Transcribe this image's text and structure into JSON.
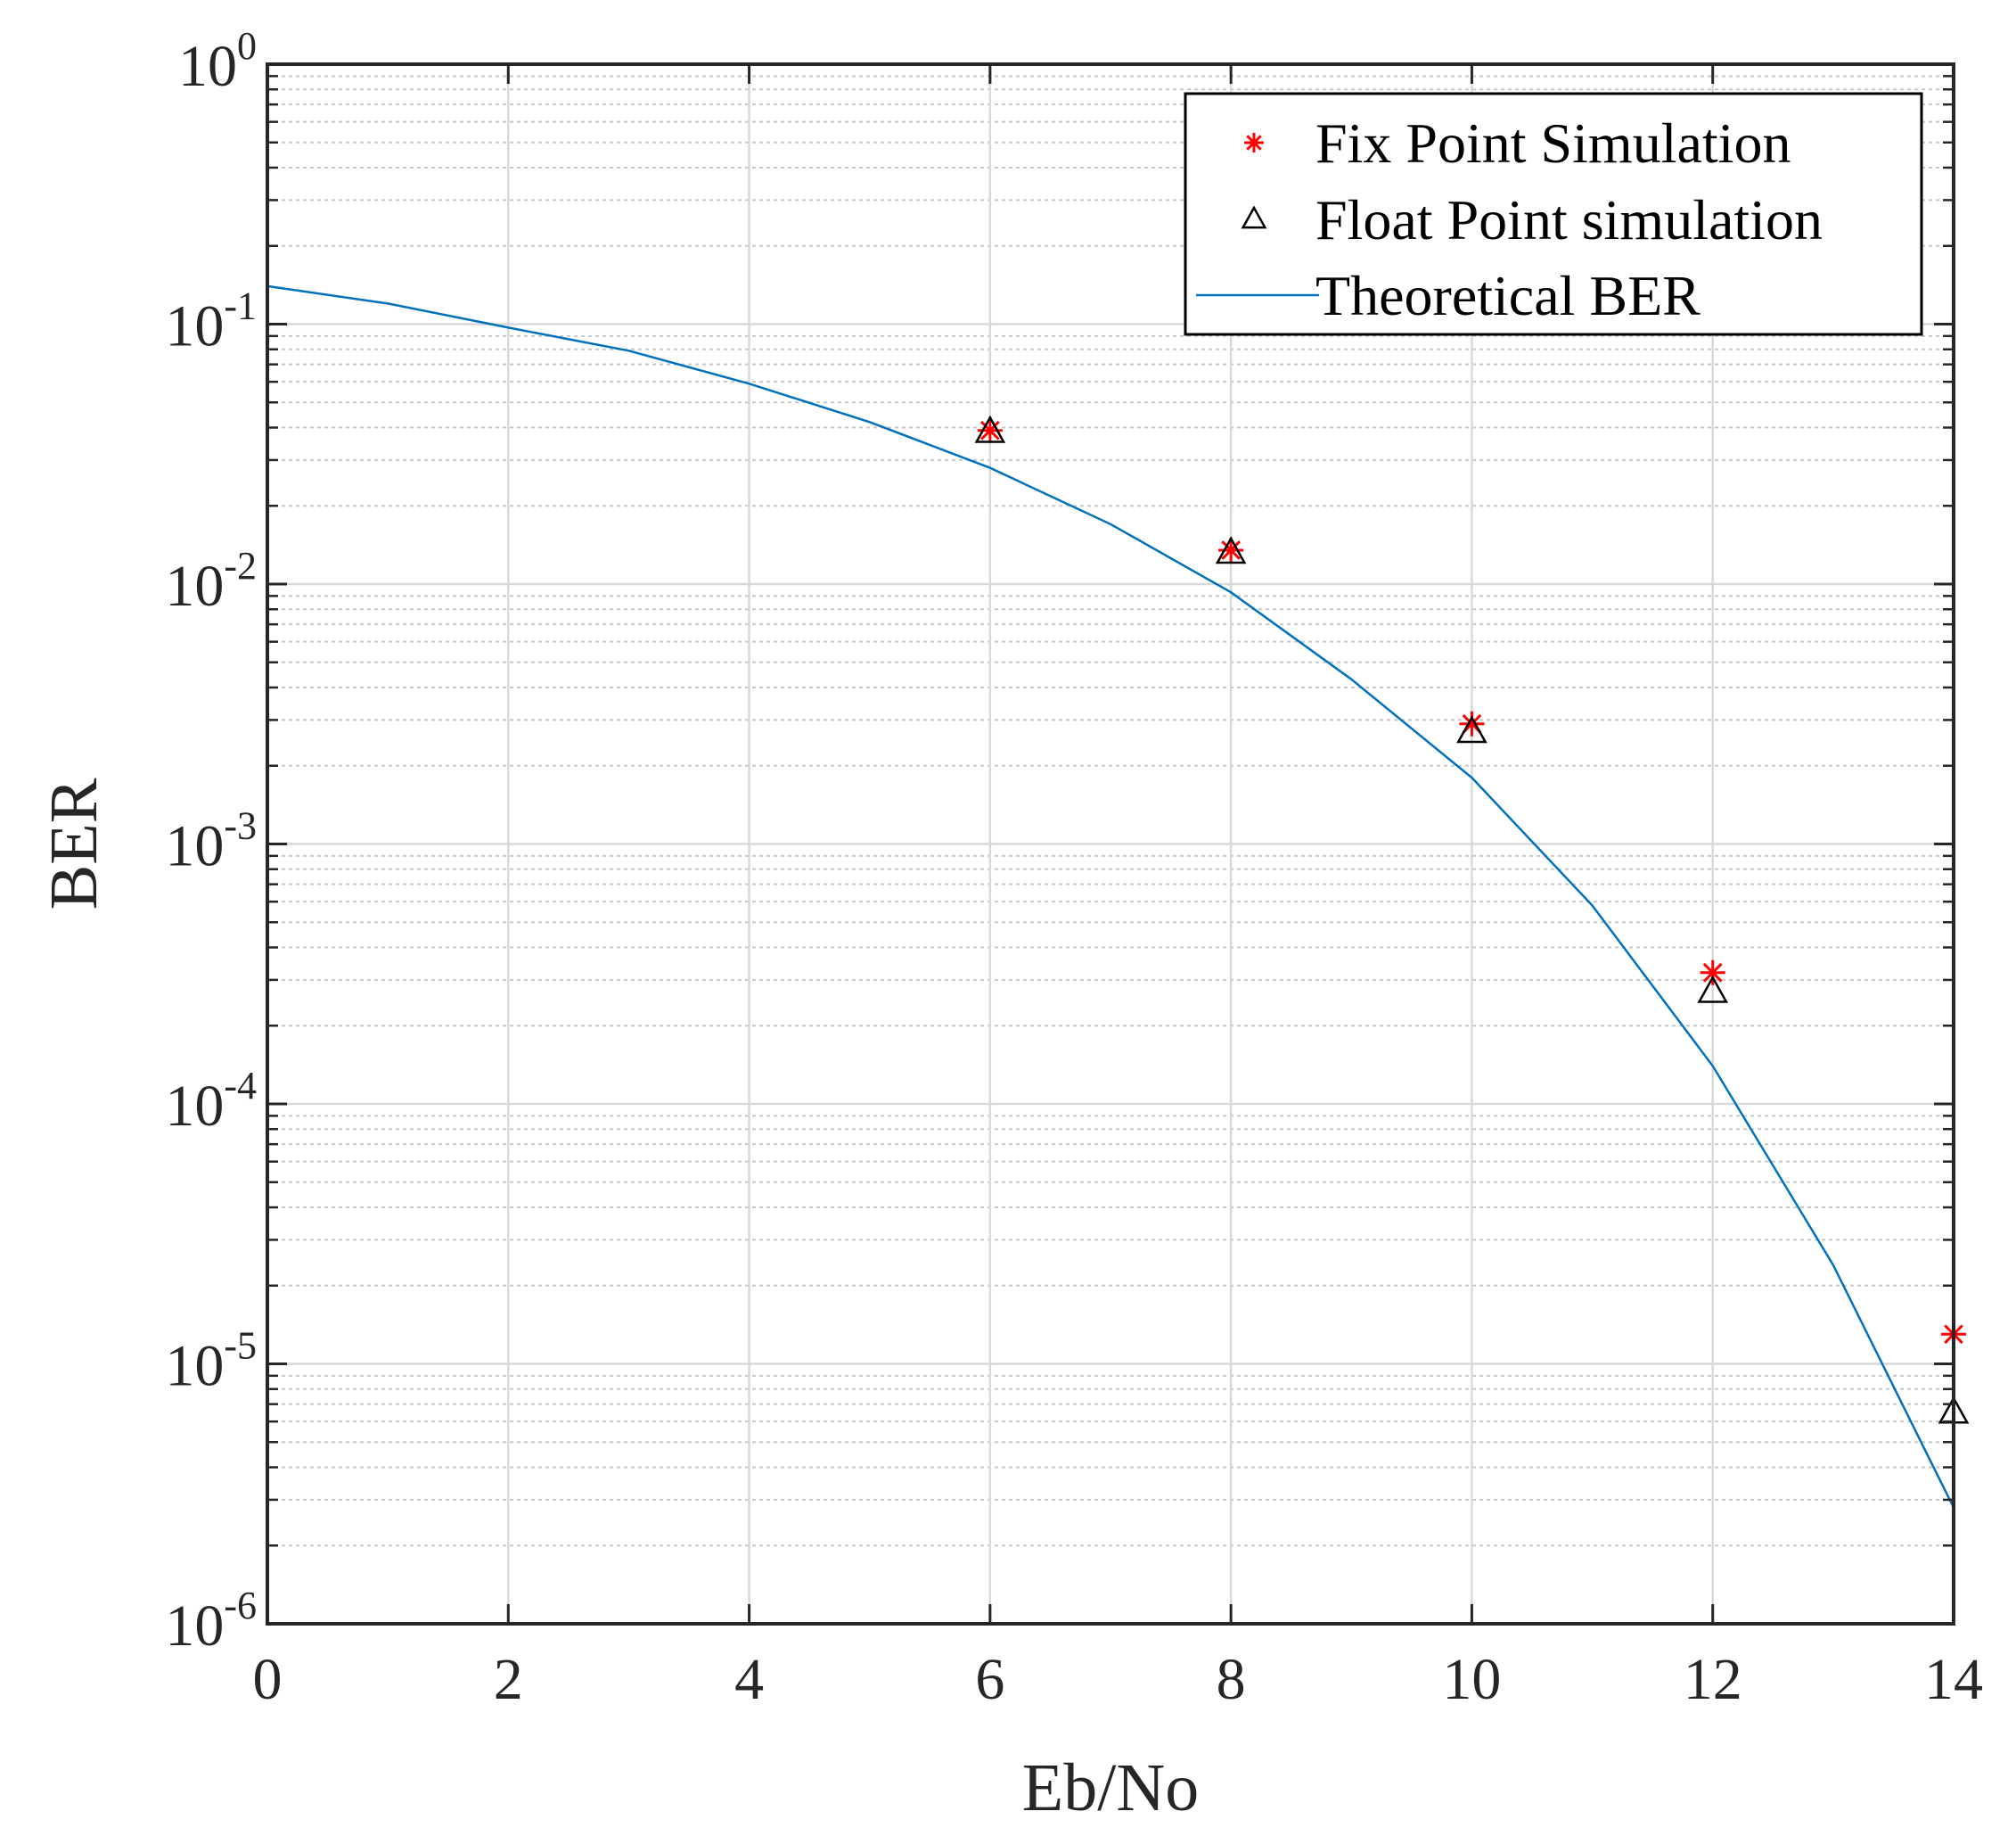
{
  "chart_data": {
    "type": "scatter",
    "xlabel": "Eb/No",
    "ylabel": "BER",
    "xlim": [
      0,
      14
    ],
    "ylim": [
      1e-06,
      1
    ],
    "yscale": "log",
    "grid": true,
    "legend_position": "top-right",
    "x_ticks": [
      0,
      2,
      4,
      6,
      8,
      10,
      12,
      14
    ],
    "y_ticks": [
      {
        "base": "10",
        "exp": "-6",
        "value": 1e-06
      },
      {
        "base": "10",
        "exp": "-5",
        "value": 1e-05
      },
      {
        "base": "10",
        "exp": "-4",
        "value": 0.0001
      },
      {
        "base": "10",
        "exp": "-3",
        "value": 0.001
      },
      {
        "base": "10",
        "exp": "-2",
        "value": 0.01
      },
      {
        "base": "10",
        "exp": "-1",
        "value": 0.1
      },
      {
        "base": "10",
        "exp": "0",
        "value": 1
      }
    ],
    "series": [
      {
        "name": "Fix Point Simulation",
        "kind": "scatter",
        "marker": "asterisk",
        "color": "#ff0000",
        "x": [
          6,
          8,
          10,
          12,
          14
        ],
        "y": [
          0.039,
          0.0135,
          0.0029,
          0.00032,
          1.3e-05
        ]
      },
      {
        "name": "Float Point simulation",
        "kind": "scatter",
        "marker": "triangle",
        "color": "#000000",
        "x": [
          6,
          8,
          10,
          12,
          14
        ],
        "y": [
          0.0385,
          0.0132,
          0.0027,
          0.00027,
          6.5e-06
        ]
      },
      {
        "name": "Theoretical BER",
        "kind": "line",
        "color": "#0072bd",
        "x": [
          0,
          1,
          2,
          3,
          4,
          5,
          6,
          7,
          8,
          9,
          10,
          11,
          12,
          13,
          14
        ],
        "y": [
          0.14,
          0.12,
          0.097,
          0.079,
          0.059,
          0.042,
          0.028,
          0.017,
          0.0093,
          0.0043,
          0.0018,
          0.00058,
          0.00014,
          2.4e-05,
          2.8e-06
        ]
      }
    ]
  }
}
